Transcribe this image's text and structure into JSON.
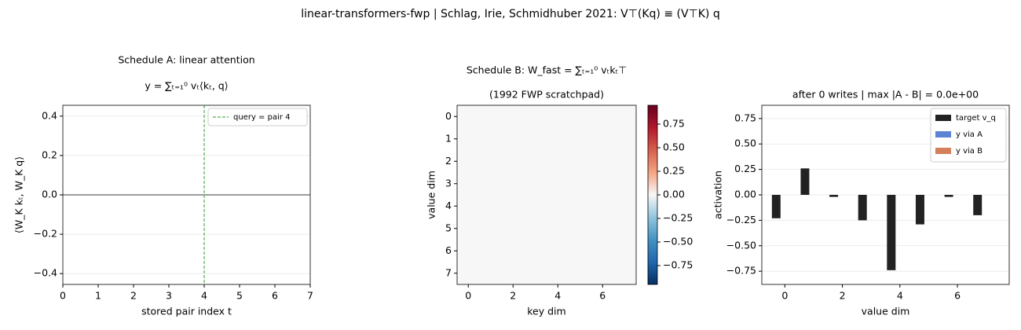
{
  "title": "linear-transformers-fwp  |  Schlag, Irie, Schmidhuber 2021:  V⊤(Kq) ≡ (V⊤K) q",
  "chart_data": [
    {
      "type": "line",
      "title": "Schedule A: linear attention",
      "subtitle": "y = ∑ₜ₌₁⁰ vₜ⟨kₜ, q⟩",
      "x_label": "stored pair index t",
      "y_label": "⟨W_K kₜ,  W_K q⟩",
      "xlim": [
        0,
        7
      ],
      "xticks": [
        0,
        1,
        2,
        3,
        4,
        5,
        6,
        7
      ],
      "ylim": [
        -0.455,
        0.455
      ],
      "yticks": [
        {
          "value": -0.4,
          "label": "−0.4"
        },
        {
          "value": -0.2,
          "label": "−0.2"
        },
        {
          "value": 0,
          "label": "0.0"
        },
        0.2,
        0.4
      ],
      "grid": true,
      "hline": 0,
      "vline": {
        "x": 4,
        "name": "query = pair 4",
        "color": "#4caf50"
      },
      "legend": "upper right"
    },
    {
      "type": "heatmap",
      "title": "Schedule B: W_fast = ∑ₜ₌₁⁰ vₜkₜ⊤",
      "subtitle": "(1992 FWP scratchpad)",
      "x_label": "key dim",
      "y_label": "value dim",
      "xlim": [
        -0.5,
        7.5
      ],
      "xticks": [
        0,
        2,
        4,
        6
      ],
      "ylim": [
        7.5,
        -0.5
      ],
      "yticks": [
        0,
        1,
        2,
        3,
        4,
        5,
        6,
        7
      ],
      "z": [
        [
          0,
          0,
          0,
          0,
          0,
          0,
          0,
          0
        ],
        [
          0,
          0,
          0,
          0,
          0,
          0,
          0,
          0
        ],
        [
          0,
          0,
          0,
          0,
          0,
          0,
          0,
          0
        ],
        [
          0,
          0,
          0,
          0,
          0,
          0,
          0,
          0
        ],
        [
          0,
          0,
          0,
          0,
          0,
          0,
          0,
          0
        ],
        [
          0,
          0,
          0,
          0,
          0,
          0,
          0,
          0
        ],
        [
          0,
          0,
          0,
          0,
          0,
          0,
          0,
          0
        ],
        [
          0,
          0,
          0,
          0,
          0,
          0,
          0,
          0
        ]
      ],
      "colormap": "RdBu_r",
      "colorbar": {
        "clim": [
          -0.95,
          0.95
        ],
        "ticks": [
          {
            "value": -0.75,
            "label": "−0.75"
          },
          {
            "value": -0.5,
            "label": "−0.50"
          },
          {
            "value": -0.25,
            "label": "−0.25"
          },
          {
            "value": 0,
            "label": "0.00"
          },
          0.25,
          {
            "value": 0.5,
            "label": "0.50"
          },
          0.75
        ]
      }
    },
    {
      "type": "bar",
      "title": "after 0 writes  |  max |A - B| = 0.0e+00",
      "x_label": "value dim",
      "y_label": "activation",
      "x": [
        0,
        1,
        2,
        3,
        4,
        5,
        6,
        7
      ],
      "xlim": [
        -0.8,
        7.8
      ],
      "xticks": [
        0,
        2,
        4,
        6
      ],
      "ylim": [
        -0.88,
        0.88
      ],
      "yticks": [
        {
          "value": -0.75,
          "label": "−0.75"
        },
        {
          "value": -0.5,
          "label": "−0.50"
        },
        {
          "value": -0.25,
          "label": "−0.25"
        },
        {
          "value": 0,
          "label": "0.00"
        },
        0.25,
        {
          "value": 0.5,
          "label": "0.50"
        },
        0.75
      ],
      "grid": true,
      "legend": "upper right",
      "series": [
        {
          "name": "target v_q",
          "color": "#222222",
          "values": [
            -0.23,
            0.26,
            -0.02,
            -0.25,
            -0.74,
            -0.29,
            -0.02,
            -0.2
          ]
        },
        {
          "name": "y via A",
          "color": "#5b84d6",
          "values": [
            0,
            0,
            0,
            0,
            0,
            0,
            0,
            0
          ]
        },
        {
          "name": "y via B",
          "color": "#d67f5c",
          "values": [
            0,
            0,
            0,
            0,
            0,
            0,
            0,
            0
          ]
        }
      ]
    }
  ]
}
